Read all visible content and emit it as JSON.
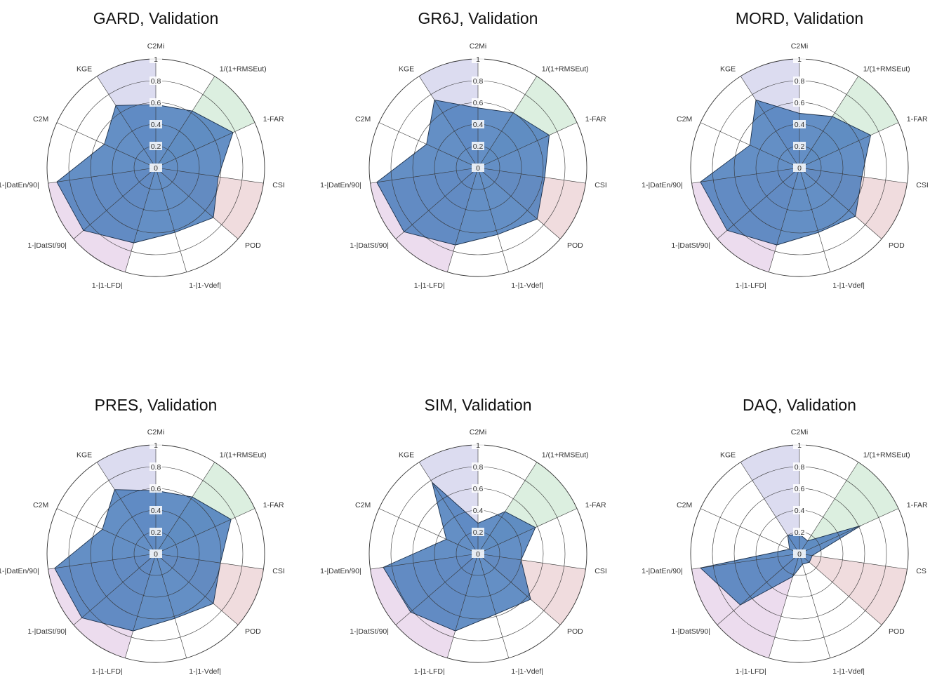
{
  "chart_data": [
    {
      "type": "radar",
      "title": "GARD, Validation",
      "axes": [
        "C2Mi",
        "1/(1+RMSEut)",
        "1-FAR",
        "CSI",
        "POD",
        "1-|1-Vdef|",
        "1-|1-LFD|",
        "1-|DatSt/90|",
        "1-|DatEn/90|",
        "C2M",
        "KGE"
      ],
      "values": [
        0.58,
        0.62,
        0.78,
        0.58,
        0.7,
        0.62,
        0.72,
        0.88,
        0.92,
        0.52,
        0.68
      ],
      "rlim": [
        0,
        1
      ],
      "rings": [
        "0",
        "0.2",
        "0.4",
        "0.6",
        "0.8",
        "1"
      ],
      "group_sectors": [
        {
          "group": "green",
          "axes": [
            "1/(1+RMSEut)"
          ]
        },
        {
          "group": "red",
          "axes": [
            "CSI"
          ]
        },
        {
          "group": "purple",
          "axes": [
            "1-|1-LFD|",
            "1-|DatSt/90|"
          ]
        },
        {
          "group": "blue",
          "axes": [
            "KGE"
          ]
        }
      ]
    },
    {
      "type": "radar",
      "title": "GR6J, Validation",
      "axes": [
        "C2Mi",
        "1/(1+RMSEut)",
        "1-FAR",
        "CSI",
        "POD",
        "1-|1-Vdef|",
        "1-|1-LFD|",
        "1-|DatSt/90|",
        "1-|DatEn/90|",
        "C2M",
        "KGE"
      ],
      "values": [
        0.55,
        0.6,
        0.72,
        0.62,
        0.72,
        0.64,
        0.74,
        0.9,
        0.94,
        0.52,
        0.74
      ],
      "rlim": [
        0,
        1
      ],
      "rings": [
        "0",
        "0.2",
        "0.4",
        "0.6",
        "0.8",
        "1"
      ],
      "group_sectors": [
        {
          "group": "green",
          "axes": [
            "1/(1+RMSEut)"
          ]
        },
        {
          "group": "red",
          "axes": [
            "CSI"
          ]
        },
        {
          "group": "purple",
          "axes": [
            "1-|1-LFD|",
            "1-|DatSt/90|"
          ]
        },
        {
          "group": "blue",
          "axes": [
            "KGE"
          ]
        }
      ]
    },
    {
      "type": "radar",
      "title": "MORD, Validation",
      "axes": [
        "C2Mi",
        "1/(1+RMSEut)",
        "1-FAR",
        "CSI",
        "POD",
        "1-|1-Vdef|",
        "1-|1-LFD|",
        "1-|DatSt/90|",
        "1-|DatEn/90|",
        "C2M",
        "KGE"
      ],
      "values": [
        0.5,
        0.56,
        0.72,
        0.58,
        0.68,
        0.62,
        0.74,
        0.88,
        0.92,
        0.5,
        0.74
      ],
      "rlim": [
        0,
        1
      ],
      "rings": [
        "0",
        "0.2",
        "0.4",
        "0.6",
        "0.8",
        "1"
      ],
      "group_sectors": [
        {
          "group": "green",
          "axes": [
            "1/(1+RMSEut)"
          ]
        },
        {
          "group": "red",
          "axes": [
            "CSI"
          ]
        },
        {
          "group": "purple",
          "axes": [
            "1-|1-LFD|",
            "1-|DatSt/90|"
          ]
        },
        {
          "group": "blue",
          "axes": [
            "KGE"
          ]
        }
      ]
    },
    {
      "type": "radar",
      "title": "PRES, Validation",
      "axes": [
        "C2Mi",
        "1/(1+RMSEut)",
        "1-FAR",
        "CSI",
        "POD",
        "1-|1-Vdef|",
        "1-|1-LFD|",
        "1-|DatSt/90|",
        "1-|DatEn/90|",
        "C2M",
        "KGE"
      ],
      "values": [
        0.58,
        0.62,
        0.76,
        0.6,
        0.7,
        0.62,
        0.74,
        0.9,
        0.94,
        0.54,
        0.7
      ],
      "rlim": [
        0,
        1
      ],
      "rings": [
        "0",
        "0.2",
        "0.4",
        "0.6",
        "0.8",
        "1"
      ],
      "group_sectors": [
        {
          "group": "green",
          "axes": [
            "1/(1+RMSEut)"
          ]
        },
        {
          "group": "red",
          "axes": [
            "CSI"
          ]
        },
        {
          "group": "purple",
          "axes": [
            "1-|1-LFD|",
            "1-|DatSt/90|"
          ]
        },
        {
          "group": "blue",
          "axes": [
            "KGE"
          ]
        }
      ]
    },
    {
      "type": "radar",
      "title": "SIM, Validation",
      "axes": [
        "C2Mi",
        "1/(1+RMSEut)",
        "1-FAR",
        "CSI",
        "POD",
        "1-|1-Vdef|",
        "1-|1-LFD|",
        "1-|DatSt/90|",
        "1-|DatEn/90|",
        "C2M",
        "KGE"
      ],
      "values": [
        0.28,
        0.46,
        0.58,
        0.4,
        0.64,
        0.58,
        0.74,
        0.82,
        0.88,
        0.32,
        0.78
      ],
      "rlim": [
        0,
        1
      ],
      "rings": [
        "0",
        "0.2",
        "0.4",
        "0.6",
        "0.8",
        "1"
      ],
      "group_sectors": [
        {
          "group": "green",
          "axes": [
            "1/(1+RMSEut)"
          ]
        },
        {
          "group": "red",
          "axes": [
            "CSI"
          ]
        },
        {
          "group": "purple",
          "axes": [
            "1-|1-LFD|",
            "1-|DatSt/90|"
          ]
        },
        {
          "group": "blue",
          "axes": [
            "KGE"
          ]
        }
      ]
    },
    {
      "type": "radar",
      "title": "DAQ, Validation",
      "axes": [
        "C2Mi",
        "1/(1+RMSEut)",
        "1-FAR",
        "CS",
        "POD",
        "1-|1-Vdef|",
        "1-|1-LFD|",
        "1-|DatSt/90|",
        "1-|DatEn/90|",
        "C2M",
        "KGE"
      ],
      "values": [
        0.18,
        0.14,
        0.62,
        0.12,
        0.12,
        0.1,
        0.22,
        0.72,
        0.92,
        0.1,
        0.2
      ],
      "rlim": [
        0,
        1
      ],
      "rings": [
        "0",
        "0.2",
        "0.4",
        "0.6",
        "0.8",
        "1"
      ],
      "group_sectors": [
        {
          "group": "green",
          "axes": [
            "1/(1+RMSEut)"
          ]
        },
        {
          "group": "red",
          "axes": [
            "CS"
          ]
        },
        {
          "group": "purple",
          "axes": [
            "1-|1-LFD|",
            "1-|DatSt/90|"
          ]
        },
        {
          "group": "blue",
          "axes": [
            "KGE"
          ]
        }
      ]
    }
  ],
  "colors": {
    "green": "#dcefe0",
    "red": "#f0dcde",
    "purple": "#ecdcee",
    "blue": "#dcdcf0",
    "polygon_fill": "#4f7fbd",
    "polygon_stroke": "#1a2f4a",
    "grid": "#333333"
  }
}
